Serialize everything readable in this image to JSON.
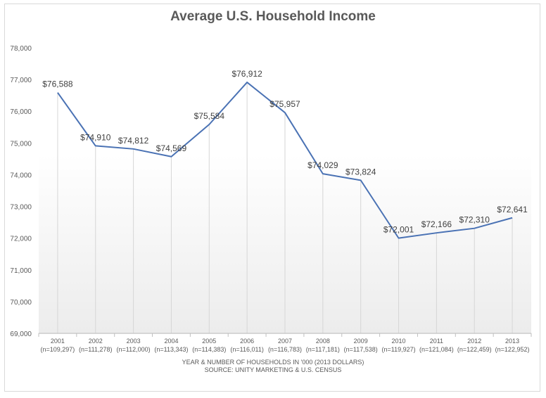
{
  "chart_data": {
    "type": "line",
    "title": "Average U.S. Household Income",
    "xlabel": "YEAR & NUMBER OF HOUSEHOLDS IN '000 (2013 DOLLARS)",
    "source": "SOURCE:  UNITY MARKETING & U.S. CENSUS",
    "categories": [
      "2001",
      "2002",
      "2003",
      "2004",
      "2005",
      "2006",
      "2007",
      "2008",
      "2009",
      "2010",
      "2011",
      "2012",
      "2013"
    ],
    "households": [
      "(n=109,297)",
      "(n=111,278)",
      "(n=112,000)",
      "(n=113,343)",
      "(n=114,383)",
      "(n=116,011)",
      "(n=116,783)",
      "(n=117,181)",
      "(n=117,538)",
      "(n=119,927)",
      "(n=121,084)",
      "(n=122,459)",
      "(n=122,952)"
    ],
    "values": [
      76588,
      74910,
      74812,
      74569,
      75584,
      76912,
      75957,
      74029,
      73824,
      72001,
      72166,
      72310,
      72641
    ],
    "data_labels": [
      "$76,588",
      "$74,910",
      "$74,812",
      "$74,569",
      "$75,584",
      "$76,912",
      "$75,957",
      "$74,029",
      "$73,824",
      "$72,001",
      "$72,166",
      "$72,310",
      "$72,641"
    ],
    "ylim": [
      69000,
      78000
    ],
    "yticks": [
      "69,000",
      "70,000",
      "71,000",
      "72,000",
      "73,000",
      "74,000",
      "75,000",
      "76,000",
      "77,000",
      "78,000"
    ],
    "line_color": "#4a72b4",
    "grid": "vertical drop lines"
  }
}
